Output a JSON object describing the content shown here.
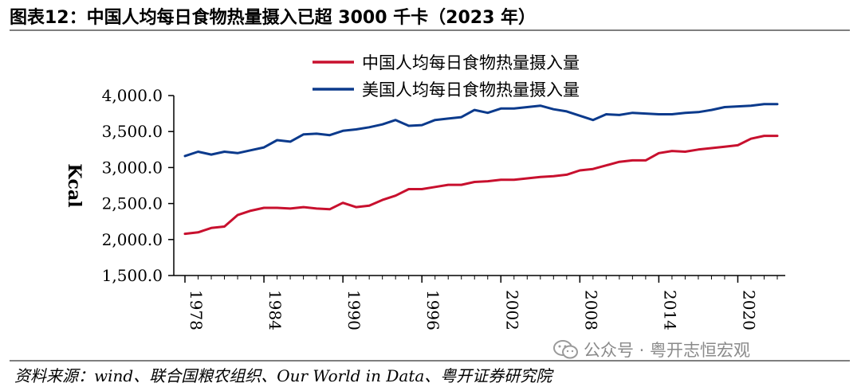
{
  "header": {
    "title": "图表12：中国人均每日食物热量摄入已超 3000 千卡（2023 年）"
  },
  "footer": {
    "source": "资料来源：wind、联合国粮农组织、Our World in Data、粤开证券研究院",
    "watermark": "公众号 · 粤开志恒宏观",
    "watermark_icon": "wechat-icon"
  },
  "chart_data": {
    "type": "line",
    "title": "",
    "xlabel": "",
    "ylabel": "Kcal",
    "ylim": [
      1500,
      4000
    ],
    "yticks": [
      "1,500.0",
      "2,000.0",
      "2,500.0",
      "3,000.0",
      "3,500.0",
      "4,000.0"
    ],
    "ytick_values": [
      1500,
      2000,
      2500,
      3000,
      3500,
      4000
    ],
    "xlim": [
      1978,
      2023
    ],
    "xticks": [
      "1978",
      "1984",
      "1990",
      "1996",
      "2002",
      "2008",
      "2014",
      "2020"
    ],
    "xtick_values": [
      1978,
      1984,
      1990,
      1996,
      2002,
      2008,
      2014,
      2020
    ],
    "legend_position": "top-right",
    "grid": false,
    "x": [
      1978,
      1979,
      1980,
      1981,
      1982,
      1983,
      1984,
      1985,
      1986,
      1987,
      1988,
      1989,
      1990,
      1991,
      1992,
      1993,
      1994,
      1995,
      1996,
      1997,
      1998,
      1999,
      2000,
      2001,
      2002,
      2003,
      2004,
      2005,
      2006,
      2007,
      2008,
      2009,
      2010,
      2011,
      2012,
      2013,
      2014,
      2015,
      2016,
      2017,
      2018,
      2019,
      2020,
      2021,
      2022,
      2023
    ],
    "series": [
      {
        "name": "中国人均每日食物热量摄入量",
        "color": "#c8102e",
        "values": [
          2080,
          2100,
          2160,
          2180,
          2340,
          2400,
          2440,
          2440,
          2430,
          2450,
          2430,
          2420,
          2510,
          2450,
          2470,
          2550,
          2610,
          2700,
          2700,
          2730,
          2760,
          2760,
          2800,
          2810,
          2830,
          2830,
          2850,
          2870,
          2880,
          2900,
          2960,
          2980,
          3030,
          3080,
          3100,
          3100,
          3200,
          3230,
          3220,
          3250,
          3270,
          3290,
          3310,
          3400,
          3440,
          3440
        ]
      },
      {
        "name": "美国人均每日食物热量摄入量",
        "color": "#0b3a8c",
        "values": [
          3160,
          3220,
          3180,
          3220,
          3200,
          3240,
          3280,
          3380,
          3360,
          3460,
          3470,
          3450,
          3510,
          3530,
          3560,
          3600,
          3660,
          3580,
          3590,
          3660,
          3680,
          3700,
          3800,
          3760,
          3820,
          3820,
          3840,
          3860,
          3810,
          3780,
          3720,
          3660,
          3740,
          3730,
          3760,
          3750,
          3740,
          3740,
          3760,
          3770,
          3800,
          3840,
          3850,
          3860,
          3880,
          3880
        ]
      }
    ]
  }
}
